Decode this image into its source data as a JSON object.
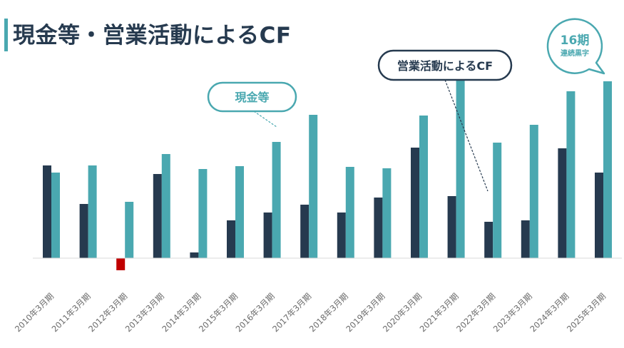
{
  "title": "現金等・営業活動によるCF",
  "callouts": {
    "cash": "現金等",
    "cf": "営業活動によるCF",
    "streak_number": "16期",
    "streak_text": "連続黒字"
  },
  "colors": {
    "operating_cf": "#263a4f",
    "cash": "#4aa8b0",
    "negative": "#c00000"
  },
  "chart_data": {
    "type": "bar",
    "categories": [
      "2010年3月期",
      "2011年3月期",
      "2012年3月期",
      "2013年3月期",
      "2014年3月期",
      "2015年3月期",
      "2016年3月期",
      "2017年3月期",
      "2018年3月期",
      "2019年3月期",
      "2020年3月期",
      "2021年3月期",
      "2022年3月期",
      "2023年3月期",
      "2024年3月期",
      "2025年3月期"
    ],
    "series": [
      {
        "name": "営業活動によるCF",
        "values": [
          130,
          76,
          -17,
          118,
          8,
          53,
          64,
          75,
          64,
          85,
          155,
          87,
          51,
          53,
          154,
          120
        ]
      },
      {
        "name": "現金等",
        "values": [
          120,
          130,
          79,
          146,
          125,
          129,
          163,
          201,
          128,
          126,
          200,
          252,
          162,
          187,
          234,
          248
        ]
      }
    ],
    "ylim": [
      -40,
      260
    ],
    "grid": false,
    "legend": "none"
  }
}
